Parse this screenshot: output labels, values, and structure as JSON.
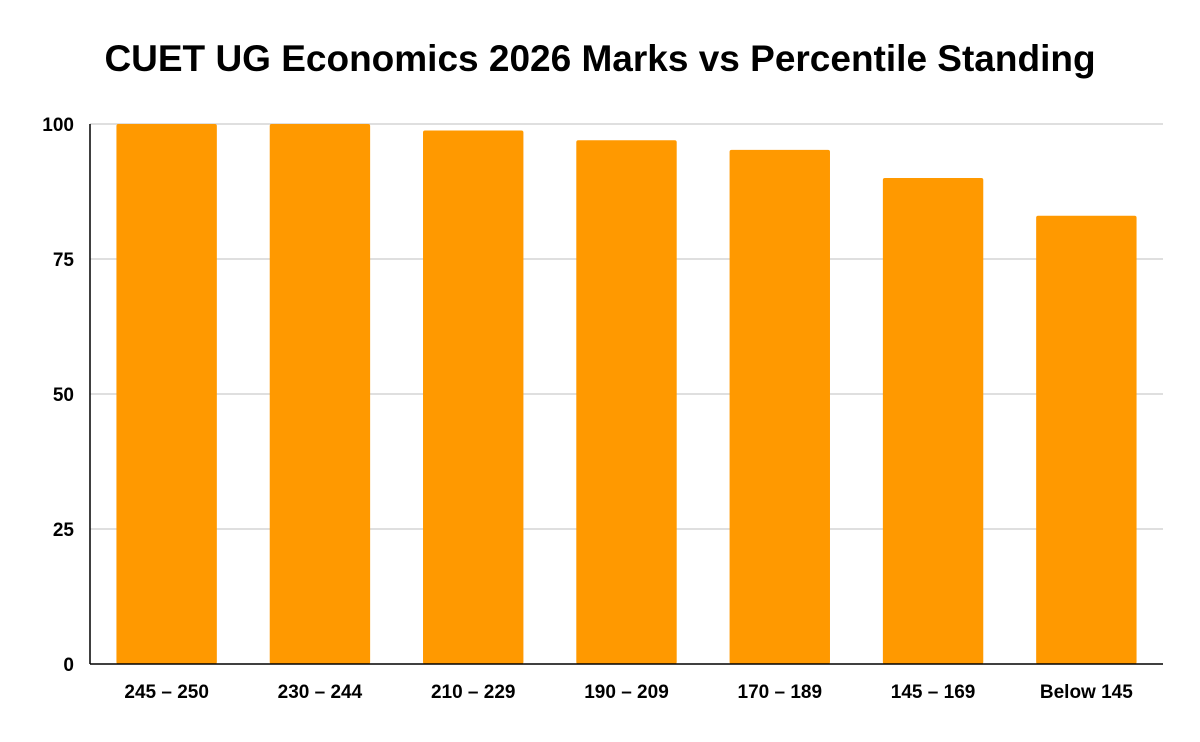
{
  "chart_data": {
    "type": "bar",
    "title": "CUET UG Economics 2026 Marks vs Percentile Standing",
    "xlabel": "",
    "ylabel": "",
    "categories": [
      "245 – 250",
      "230 – 244",
      "210 – 229",
      "190 – 209",
      "170 – 189",
      "145 – 169",
      "Below 145"
    ],
    "values": [
      100,
      100,
      98.8,
      97,
      95.2,
      90,
      83
    ],
    "ylim": [
      0,
      100
    ],
    "yticks": [
      0,
      25,
      50,
      75,
      100
    ],
    "grid": true,
    "legend": "none",
    "bar_color": "#ff9900",
    "grid_color": "#cccccc",
    "axis_color": "#000000"
  }
}
